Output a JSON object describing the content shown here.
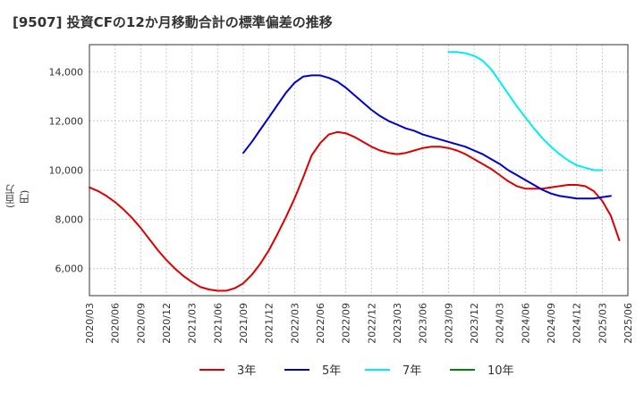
{
  "title": "[9507]  投資CFの12か月移動合計の標準偏差の推移",
  "chart_data": {
    "type": "line",
    "title": "[9507]  投資CFの12か月移動合計の標準偏差の推移",
    "ylabel": "(百万円)",
    "xlabel": "",
    "ylim": [
      4900,
      15100
    ],
    "yticks": [
      6000,
      8000,
      10000,
      12000,
      14000
    ],
    "ytick_labels": [
      "6,000",
      "8,000",
      "10,000",
      "12,000",
      "14,000"
    ],
    "xticks": [
      "2020/03",
      "2020/06",
      "2020/09",
      "2020/12",
      "2021/03",
      "2021/06",
      "2021/09",
      "2021/12",
      "2022/03",
      "2022/06",
      "2022/09",
      "2022/12",
      "2023/03",
      "2023/06",
      "2023/09",
      "2023/12",
      "2024/03",
      "2024/06",
      "2024/09",
      "2024/12",
      "2025/03",
      "2025/06"
    ],
    "grid": true,
    "legend_position": "bottom",
    "series": [
      {
        "name": "3年",
        "color": "#dd0000",
        "points": [
          [
            "2020/03",
            9300
          ],
          [
            "2020/04",
            9150
          ],
          [
            "2020/05",
            8950
          ],
          [
            "2020/06",
            8700
          ],
          [
            "2020/07",
            8400
          ],
          [
            "2020/08",
            8050
          ],
          [
            "2020/09",
            7650
          ],
          [
            "2020/10",
            7200
          ],
          [
            "2020/11",
            6750
          ],
          [
            "2020/12",
            6350
          ],
          [
            "2021/01",
            6000
          ],
          [
            "2021/02",
            5700
          ],
          [
            "2021/03",
            5450
          ],
          [
            "2021/04",
            5250
          ],
          [
            "2021/05",
            5150
          ],
          [
            "2021/06",
            5100
          ],
          [
            "2021/07",
            5100
          ],
          [
            "2021/08",
            5200
          ],
          [
            "2021/09",
            5400
          ],
          [
            "2021/10",
            5750
          ],
          [
            "2021/11",
            6200
          ],
          [
            "2021/12",
            6750
          ],
          [
            "2022/01",
            7400
          ],
          [
            "2022/02",
            8100
          ],
          [
            "2022/03",
            8850
          ],
          [
            "2022/04",
            9700
          ],
          [
            "2022/05",
            10600
          ],
          [
            "2022/06",
            11100
          ],
          [
            "2022/07",
            11450
          ],
          [
            "2022/08",
            11550
          ],
          [
            "2022/09",
            11500
          ],
          [
            "2022/10",
            11350
          ],
          [
            "2022/11",
            11150
          ],
          [
            "2022/12",
            10950
          ],
          [
            "2023/01",
            10800
          ],
          [
            "2023/02",
            10700
          ],
          [
            "2023/03",
            10650
          ],
          [
            "2023/04",
            10700
          ],
          [
            "2023/05",
            10800
          ],
          [
            "2023/06",
            10900
          ],
          [
            "2023/07",
            10950
          ],
          [
            "2023/08",
            10950
          ],
          [
            "2023/09",
            10900
          ],
          [
            "2023/10",
            10800
          ],
          [
            "2023/11",
            10650
          ],
          [
            "2023/12",
            10450
          ],
          [
            "2024/01",
            10250
          ],
          [
            "2024/02",
            10050
          ],
          [
            "2024/03",
            9800
          ],
          [
            "2024/04",
            9550
          ],
          [
            "2024/05",
            9350
          ],
          [
            "2024/06",
            9250
          ],
          [
            "2024/07",
            9250
          ],
          [
            "2024/08",
            9250
          ],
          [
            "2024/09",
            9300
          ],
          [
            "2024/10",
            9350
          ],
          [
            "2024/11",
            9400
          ],
          [
            "2024/12",
            9400
          ],
          [
            "2025/01",
            9350
          ],
          [
            "2025/02",
            9150
          ],
          [
            "2025/03",
            8750
          ],
          [
            "2025/04",
            8150
          ],
          [
            "2025/05",
            7150
          ]
        ]
      },
      {
        "name": "5年",
        "color": "#0000cc",
        "points": [
          [
            "2021/09",
            10700
          ],
          [
            "2021/10",
            11150
          ],
          [
            "2021/11",
            11650
          ],
          [
            "2021/12",
            12150
          ],
          [
            "2022/01",
            12650
          ],
          [
            "2022/02",
            13150
          ],
          [
            "2022/03",
            13550
          ],
          [
            "2022/04",
            13800
          ],
          [
            "2022/05",
            13850
          ],
          [
            "2022/06",
            13850
          ],
          [
            "2022/07",
            13750
          ],
          [
            "2022/08",
            13600
          ],
          [
            "2022/09",
            13350
          ],
          [
            "2022/10",
            13050
          ],
          [
            "2022/11",
            12750
          ],
          [
            "2022/12",
            12450
          ],
          [
            "2023/01",
            12200
          ],
          [
            "2023/02",
            12000
          ],
          [
            "2023/03",
            11850
          ],
          [
            "2023/04",
            11700
          ],
          [
            "2023/05",
            11600
          ],
          [
            "2023/06",
            11450
          ],
          [
            "2023/07",
            11350
          ],
          [
            "2023/08",
            11250
          ],
          [
            "2023/09",
            11150
          ],
          [
            "2023/10",
            11050
          ],
          [
            "2023/11",
            10950
          ],
          [
            "2023/12",
            10800
          ],
          [
            "2024/01",
            10650
          ],
          [
            "2024/02",
            10450
          ],
          [
            "2024/03",
            10250
          ],
          [
            "2024/04",
            10000
          ],
          [
            "2024/05",
            9800
          ],
          [
            "2024/06",
            9600
          ],
          [
            "2024/07",
            9400
          ],
          [
            "2024/08",
            9200
          ],
          [
            "2024/09",
            9050
          ],
          [
            "2024/10",
            8950
          ],
          [
            "2024/11",
            8900
          ],
          [
            "2024/12",
            8850
          ],
          [
            "2025/01",
            8850
          ],
          [
            "2025/02",
            8850
          ],
          [
            "2025/03",
            8900
          ],
          [
            "2025/04",
            8950
          ]
        ]
      },
      {
        "name": "7年",
        "color": "#00eeee",
        "points": [
          [
            "2023/09",
            14800
          ],
          [
            "2023/10",
            14800
          ],
          [
            "2023/11",
            14750
          ],
          [
            "2023/12",
            14650
          ],
          [
            "2024/01",
            14450
          ],
          [
            "2024/02",
            14100
          ],
          [
            "2024/03",
            13600
          ],
          [
            "2024/04",
            13100
          ],
          [
            "2024/05",
            12600
          ],
          [
            "2024/06",
            12150
          ],
          [
            "2024/07",
            11700
          ],
          [
            "2024/08",
            11300
          ],
          [
            "2024/09",
            10950
          ],
          [
            "2024/10",
            10650
          ],
          [
            "2024/11",
            10400
          ],
          [
            "2024/12",
            10200
          ],
          [
            "2025/01",
            10100
          ],
          [
            "2025/02",
            10000
          ],
          [
            "2025/03",
            10000
          ]
        ]
      },
      {
        "name": "10年",
        "color": "#008800",
        "points": []
      }
    ]
  }
}
